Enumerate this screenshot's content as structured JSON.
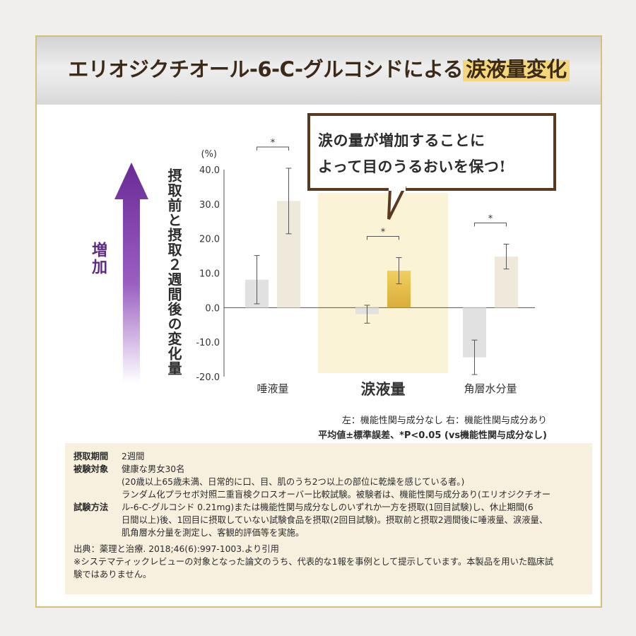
{
  "header": {
    "title_main": "エリオジクチオール-6-C-グルコシドによる",
    "title_highlight": "涙液量変化"
  },
  "callout": {
    "line1": "涙の量が増加することに",
    "line2": "よって目のうるおいを保つ!"
  },
  "increase_label": "増加",
  "y_axis_title": "摂取前と摂取２週間後の変化量",
  "colors": {
    "left_bar": "#e1e1e1",
    "right_bar": "#efe9dc",
    "highlight_bar": "#e9c24e",
    "highlight_band": "#fbf3d5",
    "arrow": "#7d3aa5"
  },
  "chart_data": {
    "type": "bar",
    "unit": "(%)",
    "ylim": [
      -20,
      40
    ],
    "y_ticks": [
      "40.0",
      "30.0",
      "20.0",
      "10.0",
      "0.0",
      "-10.0",
      "-20.0"
    ],
    "categories": [
      "唾液量",
      "涙液量",
      "角層水分量"
    ],
    "highlight_category": "涙液量",
    "series": [
      {
        "values": [
          8.1,
          -1.9,
          -14.4
        ],
        "errors": [
          7.0,
          2.6,
          5.0
        ]
      },
      {
        "values": [
          30.9,
          10.7,
          14.8
        ],
        "errors": [
          9.5,
          3.8,
          3.6
        ]
      }
    ],
    "significance": [
      "*",
      "*",
      "*"
    ],
    "legend_note": "左：機能性関与成分なし 右：機能性関与成分あり",
    "stat_note": "平均値±標準誤差、*P<0.05 (vs機能性関与成分なし)"
  },
  "info": {
    "period_label": "摂取期間",
    "period_value": "2週間",
    "subjects_label": "被験対象",
    "subjects_line1": "健康な男女30名",
    "subjects_line2": "(20歳以上65歳未満、日常的に口、目、肌のうち2つ以上の部位に乾燥を感じている者。)",
    "method_label": "試験方法",
    "method_lines": [
      "ランダム化プラセボ対照二重盲検クロスオーバー比較試験。被験者は、機能性関与成分あり(エリオジクチオー",
      "ル-6-C-グルコシド 0.21mg)または機能性関与成分なしのいずれか一方を摂取(1回目試験)し、休止期間(6",
      "日間以上)後、1回目に摂取していない試験食品を摂取(2回目試験)。摂取前と摂取2週間後に唾液量、涙液量、",
      "肌角層水分量を測定し、客観的評価等を実施。"
    ],
    "source": "出典：薬理と治療. 2018;46(6):997-1003.より引用",
    "disclaimer1": "※システマティックレビューの対象となった論文のうち、代表的な1報を事例として提示しています。本製品を用いた臨床試",
    "disclaimer2": "験ではありません。"
  }
}
